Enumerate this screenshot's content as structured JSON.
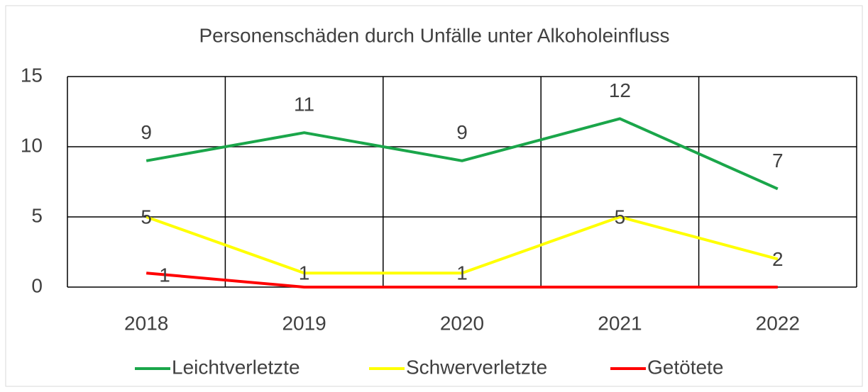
{
  "chart_data": {
    "type": "line",
    "title": "Personenschäden durch Unfälle unter Alkoholeinfluss",
    "categories": [
      "2018",
      "2019",
      "2020",
      "2021",
      "2022"
    ],
    "series": [
      {
        "name": "Leichtverletzte",
        "color": "#1aa64a",
        "values": [
          9,
          11,
          9,
          12,
          7
        ]
      },
      {
        "name": "Schwerverletzte",
        "color": "#ffff00",
        "values": [
          5,
          1,
          1,
          5,
          2
        ]
      },
      {
        "name": "Getötete",
        "color": "#ff0000",
        "values": [
          1,
          0,
          0,
          0,
          0
        ],
        "value_labels": [
          "1",
          null,
          null,
          null,
          null
        ]
      }
    ],
    "ylim": [
      0,
      15
    ],
    "yticks": [
      0,
      5,
      10,
      15
    ],
    "grid": true,
    "legend": "bottom"
  }
}
